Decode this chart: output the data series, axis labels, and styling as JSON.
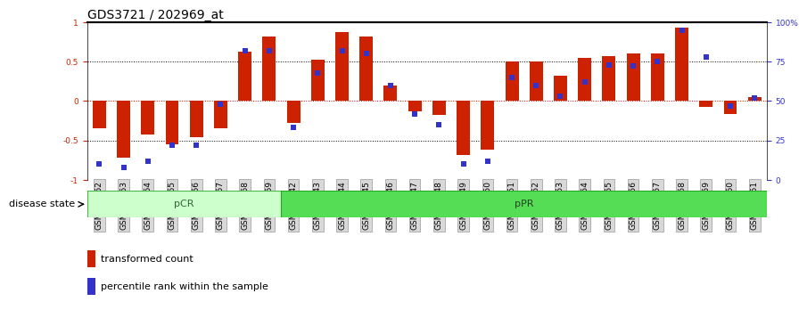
{
  "title": "GDS3721 / 202969_at",
  "samples": [
    "GSM559062",
    "GSM559063",
    "GSM559064",
    "GSM559065",
    "GSM559066",
    "GSM559067",
    "GSM559068",
    "GSM559069",
    "GSM559042",
    "GSM559043",
    "GSM559044",
    "GSM559045",
    "GSM559046",
    "GSM559047",
    "GSM559048",
    "GSM559049",
    "GSM559050",
    "GSM559051",
    "GSM559052",
    "GSM559053",
    "GSM559054",
    "GSM559055",
    "GSM559056",
    "GSM559057",
    "GSM559058",
    "GSM559059",
    "GSM559060",
    "GSM559061"
  ],
  "bar_values": [
    -0.35,
    -0.72,
    -0.42,
    -0.55,
    -0.46,
    -0.35,
    0.63,
    0.82,
    -0.28,
    0.52,
    0.87,
    0.82,
    0.2,
    -0.13,
    -0.18,
    -0.68,
    -0.62,
    0.5,
    0.5,
    0.32,
    0.55,
    0.57,
    0.6,
    0.6,
    0.93,
    -0.07,
    -0.17,
    0.05
  ],
  "dot_values": [
    10,
    8,
    12,
    22,
    22,
    48,
    82,
    82,
    33,
    68,
    82,
    80,
    60,
    42,
    35,
    10,
    12,
    65,
    60,
    53,
    62,
    73,
    72,
    75,
    95,
    78,
    47,
    52
  ],
  "group_pCR_count": 8,
  "group_pPR_count": 20,
  "group_pCR_label": "pCR",
  "group_pPR_label": "pPR",
  "disease_state_label": "disease state",
  "legend_bar_label": "transformed count",
  "legend_dot_label": "percentile rank within the sample",
  "bar_color": "#cc2200",
  "dot_color": "#3333cc",
  "pCR_color": "#ccffcc",
  "pPR_color": "#55dd55",
  "pCR_edge_color": "#44bb44",
  "pPR_edge_color": "#22aa22",
  "ylim": [
    -1,
    1
  ],
  "y2lim": [
    0,
    100
  ],
  "yticks": [
    -1,
    -0.5,
    0,
    0.5,
    1
  ],
  "ytick_labels": [
    "-1",
    "-0.5",
    "0",
    "0.5",
    "1"
  ],
  "y2ticks": [
    0,
    25,
    50,
    75,
    100
  ],
  "y2ticklabels": [
    "0",
    "25",
    "50",
    "75",
    "100%"
  ],
  "hlines": [
    -0.5,
    0.0,
    0.5
  ],
  "hline_colors": [
    "black",
    "#cc0000",
    "black"
  ],
  "title_fontsize": 10,
  "tick_fontsize": 6.5,
  "label_fontsize": 8,
  "bar_width": 0.55
}
